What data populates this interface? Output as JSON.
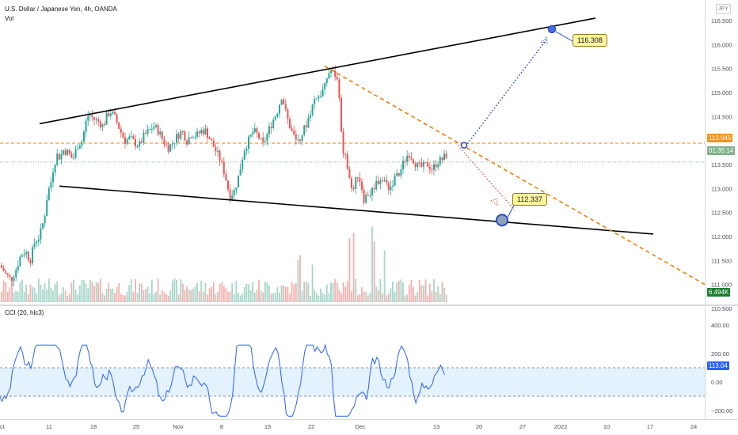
{
  "header": {
    "title": "U.S. Dollar / Japanese Yen, 4h, OANDA",
    "volume_label": "Vol",
    "currency_badge": "JPY"
  },
  "price_axis": {
    "ticks": [
      "116.500",
      "116.000",
      "115.500",
      "115.000",
      "114.500",
      "113.500",
      "113.000",
      "112.500",
      "112.000",
      "111.500",
      "111.000",
      "110.500"
    ]
  },
  "price_tags": {
    "horizontal_level": {
      "text": "113.945",
      "bg": "#f7931e",
      "fg": "#ffffff"
    },
    "countdown": {
      "text": "01:35:14",
      "bg": "#7fb28a",
      "fg": "#ffffff"
    },
    "volume": {
      "text": "6.494K",
      "bg": "#1b7d2f",
      "fg": "#ffffff"
    }
  },
  "annotations": {
    "upper_target": "116.308",
    "lower_target": "112.337"
  },
  "cci": {
    "label": "CCI (20, hlc3)",
    "ticks": [
      "400.00",
      "200.00",
      "0.00",
      "−200.00"
    ],
    "value_tag": {
      "text": "113.04",
      "bg": "#2962ff",
      "fg": "#ffffff"
    }
  },
  "time_axis": {
    "labels": [
      "ct",
      "11",
      "18",
      "25",
      "Nov",
      "8",
      "15",
      "22",
      "Dec",
      "13",
      "20",
      "27",
      "2022",
      "10",
      "17",
      "24"
    ]
  },
  "colors": {
    "up": "#26a69a",
    "down": "#ef5350",
    "trendline": "#000000",
    "dashed_projection": "#f57c00",
    "cci_line": "#2962ff",
    "cci_band": "#e3f2fd",
    "target_marker": "#2a4fd0"
  },
  "chart_data": {
    "type": "candlestick",
    "symbol": "U.S. Dollar / Japanese Yen",
    "timeframe": "4h",
    "source": "OANDA",
    "ylim": [
      110.45,
      116.75
    ],
    "path": [
      [
        0,
        111.4
      ],
      [
        8,
        111.2
      ],
      [
        14,
        111.1
      ],
      [
        20,
        111.3
      ],
      [
        26,
        111.6
      ],
      [
        32,
        111.7
      ],
      [
        38,
        111.5
      ],
      [
        44,
        111.9
      ],
      [
        50,
        112.0
      ],
      [
        56,
        112.4
      ],
      [
        60,
        112.9
      ],
      [
        64,
        113.1
      ],
      [
        68,
        113.5
      ],
      [
        72,
        113.7
      ],
      [
        76,
        113.65
      ],
      [
        80,
        113.8
      ],
      [
        86,
        113.75
      ],
      [
        92,
        113.6
      ],
      [
        98,
        113.9
      ],
      [
        104,
        114.0
      ],
      [
        108,
        114.35
      ],
      [
        112,
        114.55
      ],
      [
        118,
        114.45
      ],
      [
        124,
        114.4
      ],
      [
        130,
        114.3
      ],
      [
        136,
        114.55
      ],
      [
        140,
        114.6
      ],
      [
        146,
        114.45
      ],
      [
        152,
        114.2
      ],
      [
        158,
        114.0
      ],
      [
        164,
        114.05
      ],
      [
        170,
        113.95
      ],
      [
        176,
        113.9
      ],
      [
        182,
        114.1
      ],
      [
        188,
        114.2
      ],
      [
        194,
        114.3
      ],
      [
        200,
        114.2
      ],
      [
        206,
        114.0
      ],
      [
        212,
        113.85
      ],
      [
        218,
        113.95
      ],
      [
        224,
        114.1
      ],
      [
        230,
        114.2
      ],
      [
        236,
        114.0
      ],
      [
        242,
        114.15
      ],
      [
        248,
        114.1
      ],
      [
        254,
        114.2
      ],
      [
        260,
        114.2
      ],
      [
        266,
        114.0
      ],
      [
        272,
        113.8
      ],
      [
        278,
        113.6
      ],
      [
        284,
        113.3
      ],
      [
        290,
        112.85
      ],
      [
        296,
        112.95
      ],
      [
        302,
        113.3
      ],
      [
        308,
        113.8
      ],
      [
        314,
        114.0
      ],
      [
        320,
        114.2
      ],
      [
        326,
        114.1
      ],
      [
        332,
        113.9
      ],
      [
        338,
        114.15
      ],
      [
        344,
        114.4
      ],
      [
        350,
        114.6
      ],
      [
        356,
        114.95
      ],
      [
        362,
        114.5
      ],
      [
        368,
        114.2
      ],
      [
        374,
        114.0
      ],
      [
        380,
        114.1
      ],
      [
        386,
        114.3
      ],
      [
        392,
        114.6
      ],
      [
        398,
        114.9
      ],
      [
        404,
        114.95
      ],
      [
        410,
        115.1
      ],
      [
        414,
        115.4
      ],
      [
        418,
        115.45
      ],
      [
        424,
        115.35
      ],
      [
        428,
        115.1
      ],
      [
        432,
        113.8
      ],
      [
        436,
        113.7
      ],
      [
        440,
        113.3
      ],
      [
        444,
        112.95
      ],
      [
        448,
        113.1
      ],
      [
        452,
        113.3
      ],
      [
        456,
        113.1
      ],
      [
        460,
        112.75
      ],
      [
        464,
        112.9
      ],
      [
        468,
        112.9
      ],
      [
        474,
        113.1
      ],
      [
        480,
        113.2
      ],
      [
        486,
        113.15
      ],
      [
        492,
        113.0
      ],
      [
        498,
        113.2
      ],
      [
        504,
        113.3
      ],
      [
        510,
        113.55
      ],
      [
        516,
        113.75
      ],
      [
        522,
        113.6
      ],
      [
        528,
        113.45
      ],
      [
        534,
        113.45
      ],
      [
        540,
        113.5
      ],
      [
        546,
        113.4
      ],
      [
        552,
        113.55
      ],
      [
        558,
        113.6
      ],
      [
        564,
        113.7
      ]
    ],
    "current": {
      "level": 113.945,
      "last_price": 113.6
    },
    "trendlines": {
      "resistance": [
        [
          50,
          114.35
        ],
        [
          752,
          116.55
        ]
      ],
      "support": [
        [
          75,
          113.05
        ],
        [
          825,
          112.05
        ]
      ],
      "projection_top": [
        [
          410,
          115.55
        ],
        [
          890,
          111.0
        ]
      ],
      "projection_bottom": [
        [
          578,
          113.9
        ],
        [
          650,
          112.55
        ]
      ]
    },
    "targets": [
      116.308,
      112.337
    ],
    "volume_last": "6.494K",
    "cci_last": 113.04
  }
}
